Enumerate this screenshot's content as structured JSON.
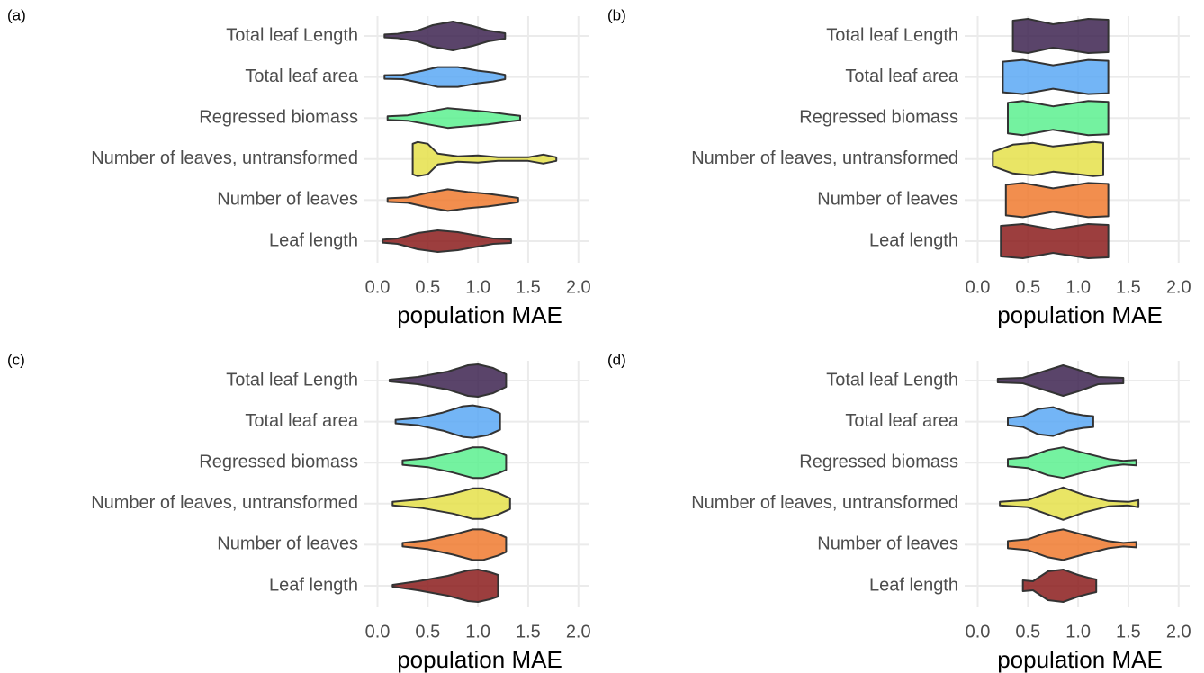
{
  "chart_data": [
    {
      "type": "violin",
      "panel": "(a)",
      "xlabel": "population MAE",
      "categories": [
        "Total leaf Length",
        "Total leaf area",
        "Regressed biomass",
        "Number of leaves, untransformed",
        "Number of leaves",
        "Leaf length"
      ],
      "xlim": [
        -0.13,
        2.11
      ],
      "xticks": [
        {
          "value": 0,
          "label": "0.0"
        },
        0.5,
        {
          "value": 1,
          "label": "1.0"
        },
        1.5,
        {
          "value": 2,
          "label": "2.0"
        }
      ],
      "grid": true,
      "violins": [
        {
          "color": "#3d2350",
          "x": [
            0.07,
            0.2,
            0.4,
            0.55,
            0.75,
            0.95,
            1.1,
            1.27
          ],
          "width": [
            0.08,
            0.12,
            0.3,
            0.6,
            0.8,
            0.55,
            0.3,
            0.15
          ]
        },
        {
          "color": "#5aa8f5",
          "x": [
            0.07,
            0.25,
            0.45,
            0.6,
            0.8,
            1.0,
            1.15,
            1.27
          ],
          "width": [
            0.1,
            0.12,
            0.35,
            0.55,
            0.55,
            0.35,
            0.25,
            0.12
          ]
        },
        {
          "color": "#5cf08f",
          "x": [
            0.1,
            0.3,
            0.5,
            0.7,
            0.9,
            1.1,
            1.3,
            1.42
          ],
          "width": [
            0.1,
            0.15,
            0.35,
            0.55,
            0.45,
            0.35,
            0.2,
            0.12
          ]
        },
        {
          "color": "#e5e04a",
          "x": [
            0.35,
            0.4,
            0.5,
            0.6,
            0.8,
            1.0,
            1.2,
            1.5,
            1.65,
            1.78
          ],
          "width": [
            0.85,
            0.95,
            0.85,
            0.3,
            0.15,
            0.2,
            0.1,
            0.1,
            0.25,
            0.1
          ]
        },
        {
          "color": "#f07a2f",
          "x": [
            0.1,
            0.3,
            0.5,
            0.7,
            0.9,
            1.1,
            1.3,
            1.4
          ],
          "width": [
            0.1,
            0.15,
            0.4,
            0.6,
            0.45,
            0.35,
            0.2,
            0.12
          ]
        },
        {
          "color": "#8b1c1c",
          "x": [
            0.05,
            0.2,
            0.4,
            0.6,
            0.8,
            1.0,
            1.15,
            1.33
          ],
          "width": [
            0.08,
            0.15,
            0.45,
            0.6,
            0.5,
            0.3,
            0.15,
            0.1
          ]
        }
      ]
    },
    {
      "type": "violin",
      "panel": "(b)",
      "xlabel": "population MAE",
      "categories": [
        "Total leaf Length",
        "Total leaf area",
        "Regressed biomass",
        "Number of leaves, untransformed",
        "Number of leaves",
        "Leaf length"
      ],
      "xlim": [
        -0.13,
        2.11
      ],
      "xticks": [
        {
          "value": 0,
          "label": "0.0"
        },
        0.5,
        {
          "value": 1,
          "label": "1.0"
        },
        1.5,
        {
          "value": 2,
          "label": "2.0"
        }
      ],
      "grid": true,
      "violins": [
        {
          "color": "#3d2350",
          "x": [
            0.35,
            0.5,
            0.75,
            1.1,
            1.3
          ],
          "width": [
            0.85,
            0.95,
            0.65,
            0.95,
            0.9
          ]
        },
        {
          "color": "#5aa8f5",
          "x": [
            0.25,
            0.45,
            0.75,
            1.1,
            1.3
          ],
          "width": [
            0.85,
            0.95,
            0.65,
            0.95,
            0.9
          ]
        },
        {
          "color": "#5cf08f",
          "x": [
            0.3,
            0.45,
            0.75,
            1.1,
            1.3
          ],
          "width": [
            0.85,
            0.95,
            0.65,
            0.95,
            0.9
          ]
        },
        {
          "color": "#e5e04a",
          "x": [
            0.15,
            0.35,
            0.55,
            0.75,
            1.0,
            1.15,
            1.25
          ],
          "width": [
            0.4,
            0.8,
            0.9,
            0.7,
            0.85,
            0.95,
            0.9
          ]
        },
        {
          "color": "#f07a2f",
          "x": [
            0.28,
            0.45,
            0.75,
            1.1,
            1.3
          ],
          "width": [
            0.85,
            0.95,
            0.65,
            0.95,
            0.9
          ]
        },
        {
          "color": "#8b1c1c",
          "x": [
            0.23,
            0.45,
            0.75,
            1.1,
            1.3
          ],
          "width": [
            0.85,
            0.95,
            0.65,
            0.95,
            0.9
          ]
        }
      ]
    },
    {
      "type": "violin",
      "panel": "(c)",
      "xlabel": "population MAE",
      "categories": [
        "Total leaf Length",
        "Total leaf area",
        "Regressed biomass",
        "Number of leaves, untransformed",
        "Number of leaves",
        "Leaf length"
      ],
      "xlim": [
        -0.13,
        2.11
      ],
      "xticks": [
        {
          "value": 0,
          "label": "0.0"
        },
        0.5,
        {
          "value": 1,
          "label": "1.0"
        },
        1.5,
        {
          "value": 2,
          "label": "2.0"
        }
      ],
      "grid": true,
      "violins": [
        {
          "color": "#3d2350",
          "x": [
            0.12,
            0.4,
            0.7,
            0.9,
            1.0,
            1.15,
            1.28
          ],
          "width": [
            0.05,
            0.2,
            0.5,
            0.85,
            0.9,
            0.7,
            0.35
          ]
        },
        {
          "color": "#5aa8f5",
          "x": [
            0.18,
            0.4,
            0.65,
            0.85,
            0.95,
            1.1,
            1.22
          ],
          "width": [
            0.1,
            0.2,
            0.5,
            0.85,
            0.9,
            0.75,
            0.45
          ]
        },
        {
          "color": "#5cf08f",
          "x": [
            0.25,
            0.5,
            0.75,
            0.95,
            1.05,
            1.2,
            1.28
          ],
          "width": [
            0.12,
            0.25,
            0.55,
            0.85,
            0.85,
            0.6,
            0.4
          ]
        },
        {
          "color": "#e5e04a",
          "x": [
            0.15,
            0.45,
            0.75,
            0.95,
            1.05,
            1.2,
            1.32
          ],
          "width": [
            0.1,
            0.25,
            0.55,
            0.85,
            0.85,
            0.6,
            0.3
          ]
        },
        {
          "color": "#f07a2f",
          "x": [
            0.25,
            0.5,
            0.75,
            0.95,
            1.05,
            1.2,
            1.28
          ],
          "width": [
            0.1,
            0.25,
            0.55,
            0.85,
            0.85,
            0.6,
            0.4
          ]
        },
        {
          "color": "#8b1c1c",
          "x": [
            0.15,
            0.4,
            0.7,
            0.9,
            1.0,
            1.12,
            1.2
          ],
          "width": [
            0.05,
            0.25,
            0.55,
            0.85,
            0.9,
            0.75,
            0.6
          ]
        }
      ]
    },
    {
      "type": "violin",
      "panel": "(d)",
      "xlabel": "population MAE",
      "categories": [
        "Total leaf Length",
        "Total leaf area",
        "Regressed biomass",
        "Number of leaves, untransformed",
        "Number of leaves",
        "Leaf length"
      ],
      "xlim": [
        -0.13,
        2.11
      ],
      "xticks": [
        {
          "value": 0,
          "label": "0.0"
        },
        0.5,
        {
          "value": 1,
          "label": "1.0"
        },
        1.5,
        {
          "value": 2,
          "label": "2.0"
        }
      ],
      "grid": true,
      "violins": [
        {
          "color": "#3d2350",
          "x": [
            0.2,
            0.45,
            0.65,
            0.85,
            1.0,
            1.2,
            1.45
          ],
          "width": [
            0.1,
            0.15,
            0.5,
            0.85,
            0.6,
            0.2,
            0.15
          ]
        },
        {
          "color": "#5aa8f5",
          "x": [
            0.3,
            0.45,
            0.6,
            0.75,
            0.9,
            1.05,
            1.15
          ],
          "width": [
            0.2,
            0.3,
            0.7,
            0.8,
            0.5,
            0.35,
            0.3
          ]
        },
        {
          "color": "#5cf08f",
          "x": [
            0.3,
            0.5,
            0.7,
            0.85,
            1.05,
            1.3,
            1.45,
            1.58
          ],
          "width": [
            0.2,
            0.3,
            0.7,
            0.85,
            0.55,
            0.2,
            0.1,
            0.15
          ]
        },
        {
          "color": "#e5e04a",
          "x": [
            0.22,
            0.35,
            0.5,
            0.65,
            0.85,
            1.05,
            1.3,
            1.5,
            1.6
          ],
          "width": [
            0.1,
            0.15,
            0.2,
            0.5,
            0.9,
            0.5,
            0.15,
            0.1,
            0.2
          ]
        },
        {
          "color": "#f07a2f",
          "x": [
            0.3,
            0.5,
            0.7,
            0.85,
            1.05,
            1.3,
            1.45,
            1.58
          ],
          "width": [
            0.2,
            0.3,
            0.7,
            0.85,
            0.55,
            0.2,
            0.1,
            0.15
          ]
        },
        {
          "color": "#8b1c1c",
          "x": [
            0.45,
            0.55,
            0.7,
            0.85,
            1.0,
            1.1,
            1.18
          ],
          "width": [
            0.3,
            0.25,
            0.8,
            0.9,
            0.6,
            0.45,
            0.35
          ]
        }
      ]
    }
  ]
}
